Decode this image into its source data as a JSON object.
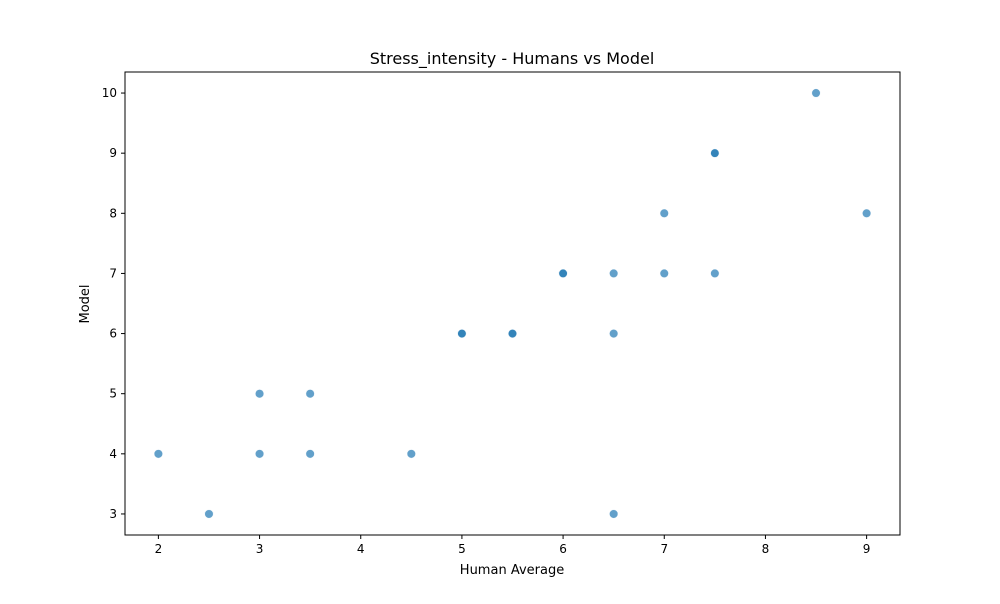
{
  "chart_data": {
    "type": "scatter",
    "title": "Stress_intensity - Humans vs Model",
    "xlabel": "Human Average",
    "ylabel": "Model",
    "xlim": [
      1.67,
      9.33
    ],
    "ylim": [
      2.65,
      10.35
    ],
    "xticks": [
      2,
      3,
      4,
      5,
      6,
      7,
      8,
      9
    ],
    "yticks": [
      3,
      4,
      5,
      6,
      7,
      8,
      9,
      10
    ],
    "xtick_labels": [
      "2",
      "3",
      "4",
      "5",
      "6",
      "7",
      "8",
      "9"
    ],
    "ytick_labels": [
      "3",
      "4",
      "5",
      "6",
      "7",
      "8",
      "9",
      "10"
    ],
    "grid": false,
    "marker_color": "#1f77b4",
    "marker_alpha": 0.7,
    "points": [
      {
        "x": 2.0,
        "y": 4
      },
      {
        "x": 2.5,
        "y": 3
      },
      {
        "x": 3.0,
        "y": 5
      },
      {
        "x": 3.0,
        "y": 4
      },
      {
        "x": 3.5,
        "y": 5
      },
      {
        "x": 3.5,
        "y": 4
      },
      {
        "x": 4.5,
        "y": 4
      },
      {
        "x": 5.0,
        "y": 6
      },
      {
        "x": 5.0,
        "y": 6
      },
      {
        "x": 5.5,
        "y": 6
      },
      {
        "x": 5.5,
        "y": 6
      },
      {
        "x": 6.0,
        "y": 7
      },
      {
        "x": 6.0,
        "y": 7
      },
      {
        "x": 6.5,
        "y": 7
      },
      {
        "x": 6.5,
        "y": 6
      },
      {
        "x": 6.5,
        "y": 3
      },
      {
        "x": 7.0,
        "y": 8
      },
      {
        "x": 7.0,
        "y": 7
      },
      {
        "x": 7.5,
        "y": 9
      },
      {
        "x": 7.5,
        "y": 9
      },
      {
        "x": 7.5,
        "y": 7
      },
      {
        "x": 8.5,
        "y": 10
      },
      {
        "x": 9.0,
        "y": 8
      }
    ]
  }
}
